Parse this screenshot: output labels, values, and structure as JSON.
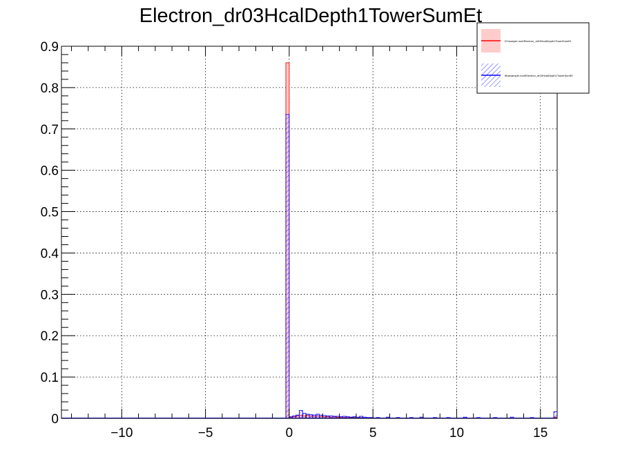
{
  "chart_data": {
    "type": "bar",
    "title": "Electron_dr03HcalDepth1TowerSumEt",
    "xlabel": "",
    "ylabel": "",
    "xlim": [
      -13.6,
      16.0
    ],
    "ylim": [
      0,
      0.9
    ],
    "xticks": [
      -10,
      -5,
      0,
      5,
      10,
      15
    ],
    "xtick_labels": [
      "−10",
      "−5",
      "0",
      "5",
      "10",
      "15"
    ],
    "yticks": [
      0,
      0.1,
      0.2,
      0.3,
      0.4,
      0.5,
      0.6,
      0.7,
      0.8,
      0.9
    ],
    "ytick_labels": [
      "0",
      "0.1",
      "0.2",
      "0.3",
      "0.4",
      "0.5",
      "0.6",
      "0.7",
      "0.8",
      "0.9"
    ],
    "grid": true,
    "legend_position": "top-right",
    "series": [
      {
        "name": "DYsample.root/Electron_dr03HcalDepth1TowerSumEt",
        "color": "#ff0000",
        "fill": "#ffcccc",
        "bin_width": 0.2,
        "bins": [
          [
            -0.1,
            0.86
          ],
          [
            0.1,
            0.002
          ],
          [
            0.3,
            0.004
          ],
          [
            0.5,
            0.006
          ],
          [
            0.7,
            0.008
          ],
          [
            0.9,
            0.006
          ],
          [
            1.1,
            0.007
          ],
          [
            1.3,
            0.006
          ],
          [
            1.5,
            0.005
          ],
          [
            1.7,
            0.006
          ],
          [
            1.9,
            0.005
          ],
          [
            2.1,
            0.004
          ],
          [
            2.3,
            0.004
          ],
          [
            2.5,
            0.003
          ],
          [
            2.7,
            0.004
          ],
          [
            2.9,
            0.003
          ],
          [
            3.1,
            0.003
          ],
          [
            3.3,
            0.002
          ],
          [
            3.5,
            0.002
          ],
          [
            3.7,
            0.002
          ],
          [
            3.9,
            0.002
          ],
          [
            4.3,
            0.002
          ],
          [
            4.7,
            0.001
          ],
          [
            5.1,
            0.001
          ],
          [
            5.5,
            0.001
          ],
          [
            6.3,
            0.001
          ],
          [
            7.1,
            0.001
          ],
          [
            8.1,
            0.001
          ],
          [
            9.1,
            0.001
          ],
          [
            15.9,
            0.003
          ]
        ]
      },
      {
        "name": "ttbarsample.root/Electron_dr03HcalDepth1TowerSumEt",
        "color": "#0000ff",
        "fill": "hatched",
        "bin_width": 0.2,
        "bins": [
          [
            -0.1,
            0.735
          ],
          [
            0.1,
            0.004
          ],
          [
            0.3,
            0.006
          ],
          [
            0.5,
            0.008
          ],
          [
            0.7,
            0.019
          ],
          [
            0.9,
            0.012
          ],
          [
            1.1,
            0.01
          ],
          [
            1.3,
            0.009
          ],
          [
            1.5,
            0.008
          ],
          [
            1.7,
            0.01
          ],
          [
            1.9,
            0.008
          ],
          [
            2.1,
            0.007
          ],
          [
            2.3,
            0.006
          ],
          [
            2.5,
            0.006
          ],
          [
            2.7,
            0.005
          ],
          [
            2.9,
            0.005
          ],
          [
            3.1,
            0.004
          ],
          [
            3.3,
            0.005
          ],
          [
            3.5,
            0.004
          ],
          [
            3.7,
            0.003
          ],
          [
            3.9,
            0.004
          ],
          [
            4.1,
            0.003
          ],
          [
            4.3,
            0.005
          ],
          [
            4.5,
            0.003
          ],
          [
            4.7,
            0.002
          ],
          [
            4.9,
            0.002
          ],
          [
            5.3,
            0.002
          ],
          [
            5.9,
            0.003
          ],
          [
            6.5,
            0.002
          ],
          [
            7.3,
            0.002
          ],
          [
            7.9,
            0.003
          ],
          [
            8.7,
            0.002
          ],
          [
            9.5,
            0.002
          ],
          [
            10.5,
            0.003
          ],
          [
            11.3,
            0.002
          ],
          [
            12.3,
            0.002
          ],
          [
            13.3,
            0.003
          ],
          [
            14.5,
            0.002
          ],
          [
            15.9,
            0.016
          ]
        ]
      }
    ]
  }
}
